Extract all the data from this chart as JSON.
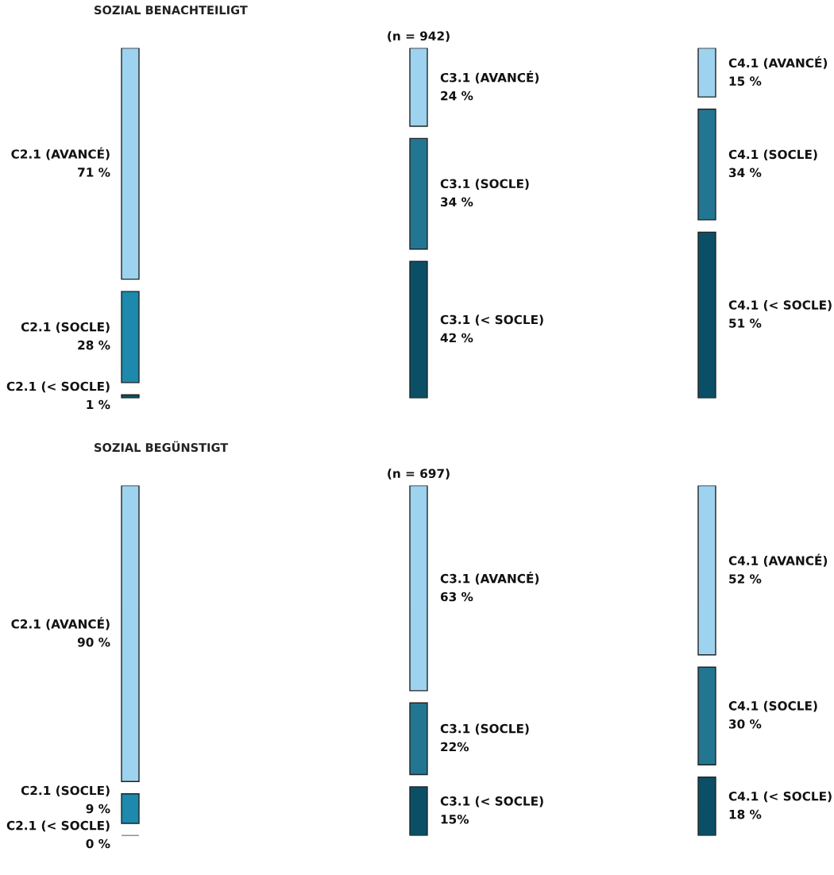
{
  "chart_data": [
    {
      "type": "other",
      "title": "SOZIAL BENACHTEILIGT",
      "subtitle": "(n = 942)",
      "categories": [
        "C2.1 (AVANCÉ)",
        "C2.1 (SOCLE)",
        "C2.1 (< SOCLE)",
        "C3.1 (AVANCÉ)",
        "C3.1 (SOCLE)",
        "C3.1 (< SOCLE)",
        "C4.1 (AVANCÉ)",
        "C4.1 (SOCLE)",
        "C4.1 (< SOCLE)"
      ],
      "values": [
        71,
        28,
        1,
        24,
        34,
        42,
        15,
        34,
        51
      ],
      "value_labels": [
        "71 %",
        "28 %",
        "1 %",
        "24 %",
        "34 %",
        "42 %",
        "15 %",
        "34 %",
        "51 %"
      ],
      "colors": [
        "#9dd3ee",
        "#1c89ad",
        "#0b4f66",
        "#9dd3ee",
        "#227691",
        "#0b4f66",
        "#9dd3ee",
        "#227691",
        "#0b4f66"
      ]
    },
    {
      "type": "other",
      "title": "SOZIAL BEGÜNSTIGT",
      "subtitle": "(n = 697)",
      "categories": [
        "C2.1 (AVANCÉ)",
        "C2.1 (SOCLE)",
        "C2.1 (< SOCLE)",
        "C3.1 (AVANCÉ)",
        "C3.1 (SOCLE)",
        "C3.1 (< SOCLE)",
        "C4.1 (AVANCÉ)",
        "C4.1 (SOCLE)",
        "C4.1 (< SOCLE)"
      ],
      "values": [
        90,
        9,
        0,
        63,
        22,
        15,
        52,
        30,
        18
      ],
      "value_labels": [
        "90 %",
        "9 %",
        "0 %",
        "63 %",
        "22%",
        "15%",
        "52 %",
        "30 %",
        "18 %"
      ],
      "colors": [
        "#9dd3ee",
        "#1c89ad",
        "#0b4f66",
        "#9dd3ee",
        "#227691",
        "#0b4f66",
        "#9dd3ee",
        "#227691",
        "#0b4f66"
      ]
    }
  ]
}
